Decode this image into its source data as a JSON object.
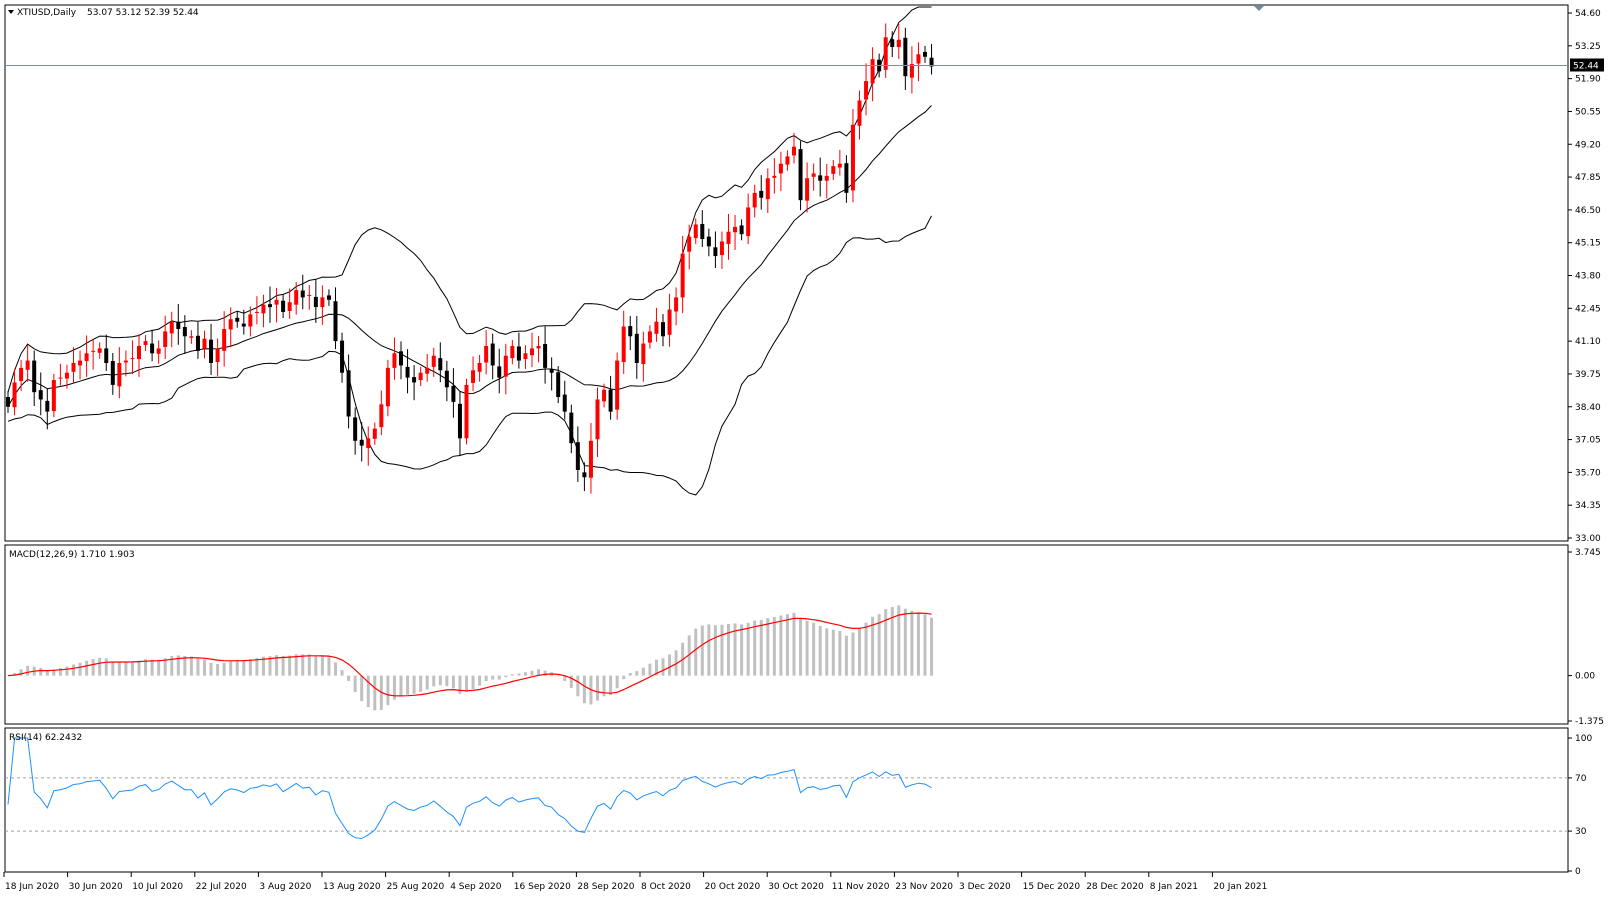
{
  "colors": {
    "background": "#ffffff",
    "frame": "#000000",
    "bull_candle": "#ff0000",
    "bear_candle": "#000000",
    "bollinger": "#000000",
    "macd_hist": "#c0c0c0",
    "macd_signal": "#ff0000",
    "rsi_line": "#1e90ff",
    "level_line": "#a0a0a0",
    "price_tag_bg": "#000000",
    "price_tag_text": "#ffffff"
  },
  "chart_data": [
    {
      "type": "candlestick",
      "title": "XTIUSD,Daily",
      "ohlc_header": "53.07 53.12 52.39 52.44",
      "current_price_label": "52.44",
      "current_price": 52.44,
      "ylim": [
        33.0,
        54.6
      ],
      "yticks": [
        "54.60",
        "53.25",
        "51.90",
        "50.55",
        "49.20",
        "47.85",
        "46.50",
        "45.15",
        "43.80",
        "42.45",
        "41.10",
        "39.75",
        "38.40",
        "37.05",
        "35.70",
        "34.35",
        "33.00"
      ],
      "xticks": [
        "18 Jun 2020",
        "30 Jun 2020",
        "10 Jul 2020",
        "22 Jul 2020",
        "3 Aug 2020",
        "13 Aug 2020",
        "25 Aug 2020",
        "4 Sep 2020",
        "16 Sep 2020",
        "28 Sep 2020",
        "8 Oct 2020",
        "20 Oct 2020",
        "30 Oct 2020",
        "11 Nov 2020",
        "23 Nov 2020",
        "3 Dec 2020",
        "15 Dec 2020",
        "28 Dec 2020",
        "8 Jan 2021",
        "20 Jan 2021"
      ],
      "closes": [
        38.4,
        39.4,
        40.0,
        40.3,
        39.0,
        38.7,
        38.2,
        39.5,
        39.6,
        39.8,
        40.2,
        40.3,
        40.6,
        40.7,
        40.8,
        40.2,
        39.3,
        40.2,
        40.3,
        40.4,
        40.9,
        41.1,
        40.6,
        40.8,
        41.5,
        41.9,
        41.6,
        41.3,
        41.3,
        40.7,
        41.2,
        40.2,
        40.8,
        41.6,
        42.0,
        41.9,
        41.7,
        42.2,
        42.3,
        42.6,
        42.5,
        42.8,
        42.3,
        42.7,
        43.2,
        42.9,
        43.0,
        42.5,
        42.9,
        42.8,
        41.1,
        39.8,
        38.0,
        37.0,
        36.8,
        37.1,
        37.5,
        38.5,
        40.0,
        40.6,
        40.1,
        39.6,
        39.4,
        39.8,
        40.0,
        40.5,
        39.9,
        39.2,
        38.6,
        37.1,
        39.3,
        39.9,
        40.2,
        40.9,
        40.1,
        39.6,
        40.5,
        40.9,
        40.3,
        40.6,
        40.8,
        40.9,
        40.0,
        39.8,
        38.8,
        38.2,
        36.9,
        35.8,
        35.5,
        37.0,
        38.7,
        39.1,
        38.2,
        40.3,
        41.7,
        41.3,
        40.2,
        41.0,
        41.5,
        41.9,
        41.3,
        42.4,
        42.9,
        44.7,
        45.4,
        45.9,
        45.3,
        45.0,
        44.6,
        45.2,
        45.6,
        45.8,
        45.5,
        46.6,
        47.2,
        47.0,
        47.8,
        47.9,
        48.4,
        48.7,
        49.1,
        46.9,
        47.8,
        48.0,
        47.7,
        47.9,
        48.3,
        48.4,
        47.2,
        50.0,
        51.0,
        51.8,
        52.7,
        52.2,
        53.6,
        53.2,
        53.5,
        52.0,
        52.5,
        52.9,
        52.8,
        52.4
      ]
    },
    {
      "type": "histogram+line",
      "title": "MACD(12,26,9) 1.710 1.903",
      "ylim": [
        -1.375,
        3.745
      ],
      "yticks": [
        "3.745",
        "0.00",
        "-1.375"
      ],
      "note_source": "values derived from closes by script"
    },
    {
      "type": "line",
      "title": "RSI(14) 62.2432",
      "ylim": [
        0,
        100
      ],
      "yticks": [
        "100",
        "70",
        "30",
        "0"
      ],
      "levels": [
        70,
        30
      ]
    }
  ]
}
